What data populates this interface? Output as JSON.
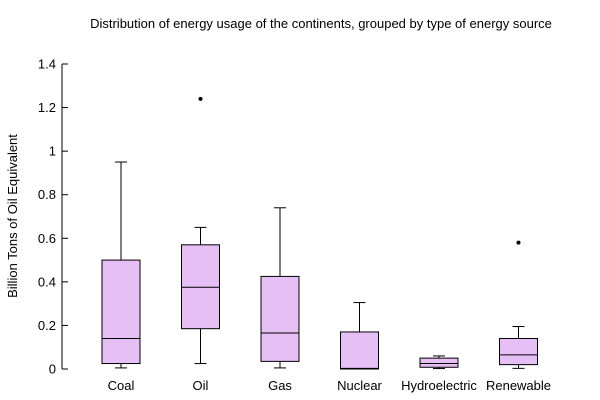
{
  "chart_data": {
    "type": "boxplot",
    "title": "Distribution of energy usage of the continents, grouped by type of energy source",
    "xlabel": "",
    "ylabel": "Billion Tons of Oil Equivalent",
    "ylim": [
      0,
      1.4
    ],
    "yticks": [
      0,
      0.2,
      0.4,
      0.6,
      0.8,
      1,
      1.2,
      1.4
    ],
    "ytick_labels": [
      "0",
      "0.2",
      "0.4",
      "0.6",
      "0.8",
      "1",
      "1.2",
      "1.4"
    ],
    "grid": false,
    "categories": [
      "Coal",
      "Oil",
      "Gas",
      "Nuclear",
      "Hydroelectric",
      "Renewable"
    ],
    "box_color": "#e6bff5",
    "boxes": [
      {
        "category": "Coal",
        "whisker_low": 0.005,
        "q1": 0.025,
        "median": 0.14,
        "q3": 0.5,
        "whisker_high": 0.95,
        "outliers": []
      },
      {
        "category": "Oil",
        "whisker_low": 0.025,
        "q1": 0.185,
        "median": 0.375,
        "q3": 0.57,
        "whisker_high": 0.65,
        "outliers": [
          1.24
        ]
      },
      {
        "category": "Gas",
        "whisker_low": 0.005,
        "q1": 0.035,
        "median": 0.165,
        "q3": 0.425,
        "whisker_high": 0.74,
        "outliers": []
      },
      {
        "category": "Nuclear",
        "whisker_low": 0.0,
        "q1": 0.0,
        "median": 0.003,
        "q3": 0.17,
        "whisker_high": 0.305,
        "outliers": []
      },
      {
        "category": "Hydroelectric",
        "whisker_low": 0.002,
        "q1": 0.008,
        "median": 0.025,
        "q3": 0.05,
        "whisker_high": 0.06,
        "outliers": []
      },
      {
        "category": "Renewable",
        "whisker_low": 0.003,
        "q1": 0.02,
        "median": 0.065,
        "q3": 0.14,
        "whisker_high": 0.195,
        "outliers": [
          0.58
        ]
      }
    ]
  }
}
